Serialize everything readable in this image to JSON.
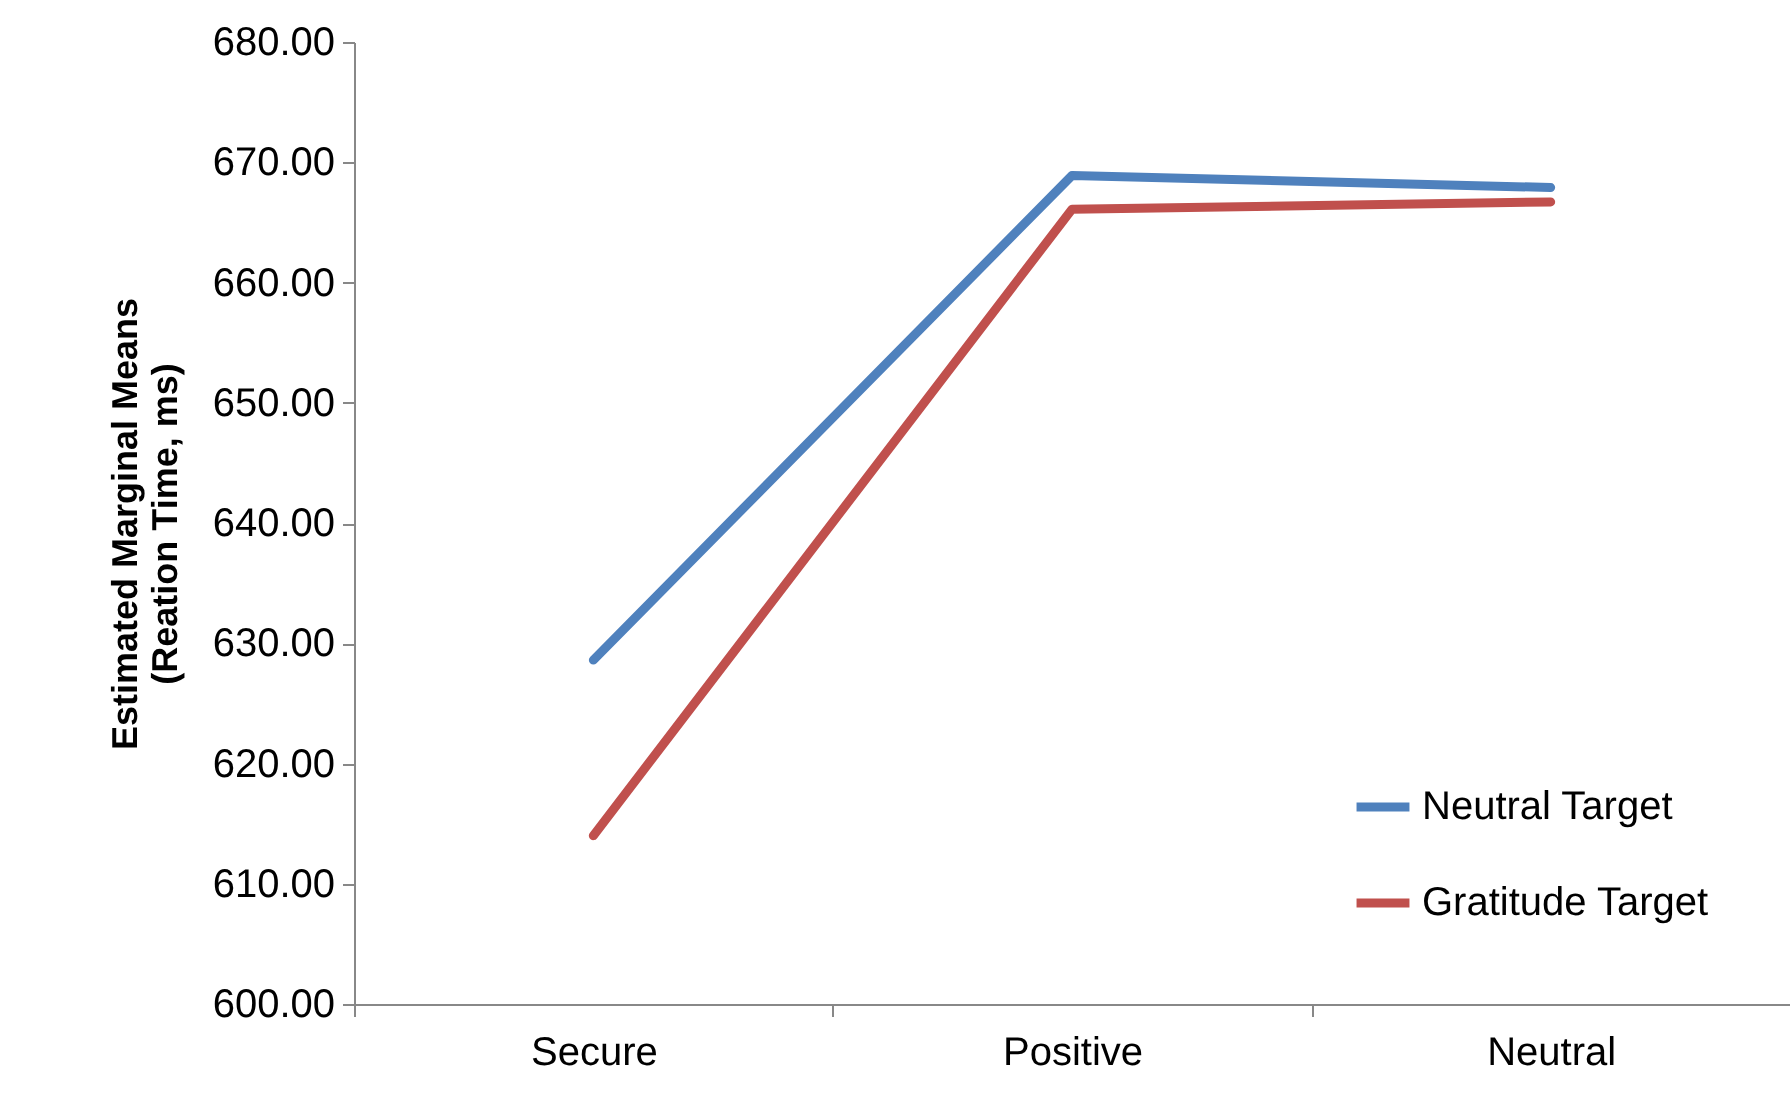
{
  "chart_data": {
    "type": "line",
    "ylabel": "Estimated Marginal Means (Reation Time, ms)",
    "categories": [
      "Secure",
      "Positive",
      "Neutral"
    ],
    "series": [
      {
        "name": "Neutral Target",
        "color": "#4f81bd",
        "values": [
          628.6,
          668.9,
          667.9
        ]
      },
      {
        "name": "Gratitude Target",
        "color": "#c0504d",
        "values": [
          614.0,
          666.1,
          666.7
        ]
      }
    ],
    "ylim": [
      600,
      680
    ],
    "yticks": [
      {
        "value": 600,
        "label": "600.00"
      },
      {
        "value": 610,
        "label": "610.00"
      },
      {
        "value": 620,
        "label": "620.00"
      },
      {
        "value": 630,
        "label": "630.00"
      },
      {
        "value": 640,
        "label": "640.00"
      },
      {
        "value": 650,
        "label": "650.00"
      },
      {
        "value": 660,
        "label": "660.00"
      },
      {
        "value": 670,
        "label": "670.00"
      },
      {
        "value": 680,
        "label": "680.00"
      }
    ],
    "grid": false,
    "legend": "bottom right",
    "marker": "none",
    "line_style": "solid"
  }
}
